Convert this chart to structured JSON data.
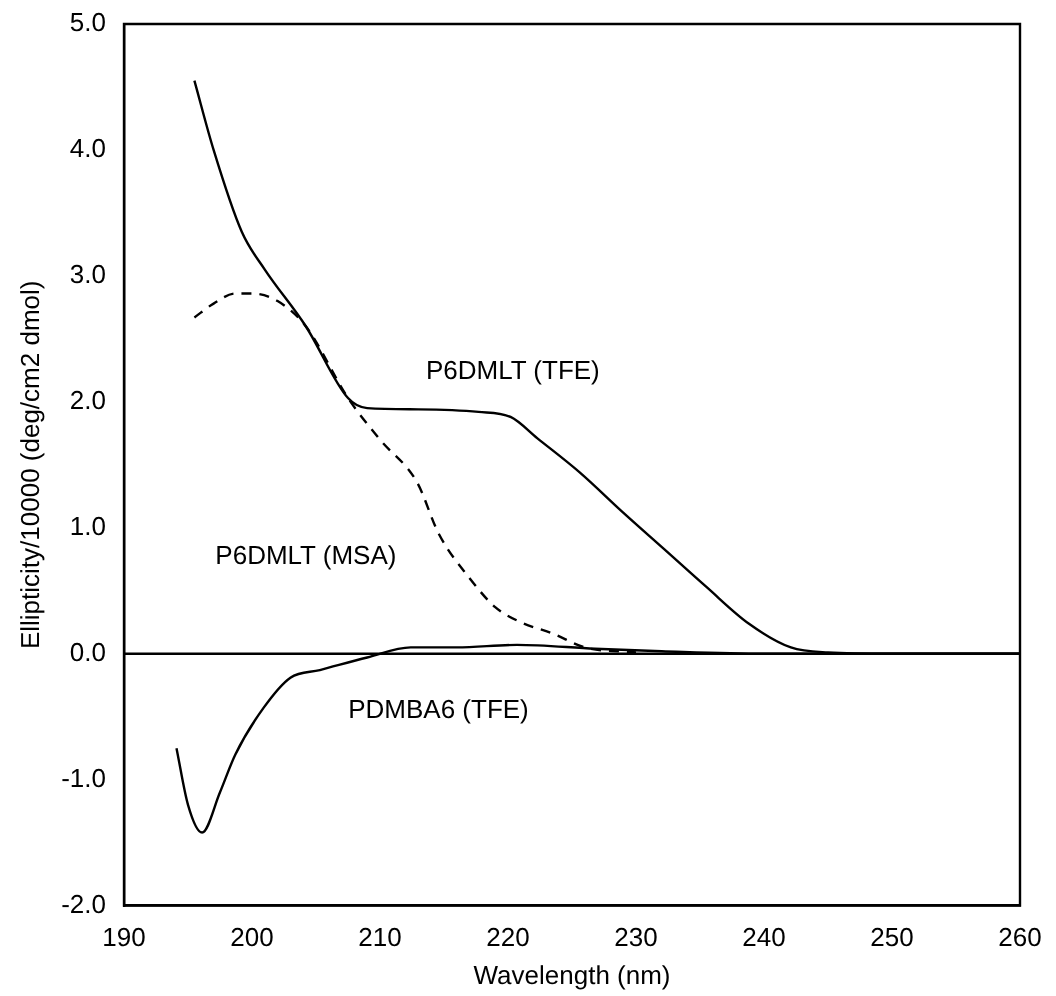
{
  "chart_data": {
    "type": "line",
    "xlabel": "Wavelength (nm)",
    "ylabel": "Ellipticity/10000 (deg/cm2 dmol)",
    "xlim": [
      190,
      260
    ],
    "xticks": [
      190,
      200,
      210,
      220,
      230,
      240,
      250,
      260
    ],
    "ylim": [
      -2,
      5
    ],
    "yticks": [
      {
        "value": -2,
        "label": "-2.0"
      },
      {
        "value": -1,
        "label": "-1.0"
      },
      {
        "value": 0,
        "label": "0.0"
      },
      {
        "value": 1,
        "label": "1.0"
      },
      {
        "value": 2,
        "label": "2.0"
      },
      {
        "value": 3,
        "label": "3.0"
      },
      {
        "value": 4,
        "label": "4.0"
      },
      {
        "value": 5,
        "label": "5.0"
      }
    ],
    "grid": false,
    "legend": false,
    "marker": "none",
    "series": [
      {
        "color": "#000000",
        "line_style": "solid",
        "x": [
          195.5,
          197,
          199.2,
          201,
          204.2,
          207.5,
          209,
          213,
          217.7,
          220.2,
          222.3,
          225.6,
          229,
          232.2,
          235.5,
          238.8,
          242.1,
          245,
          250,
          255,
          260
        ],
        "values": [
          4.55,
          4.0,
          3.35,
          3.05,
          2.6,
          2.03,
          1.95,
          1.94,
          1.92,
          1.88,
          1.71,
          1.44,
          1.12,
          0.83,
          0.53,
          0.24,
          0.05,
          0.01,
          0,
          0,
          0
        ]
      },
      {
        "color": "#000000",
        "line_style": "dashed",
        "x": [
          195.5,
          197,
          198.7,
          200,
          202,
          204.2,
          207.5,
          210,
          212.9,
          214.6,
          217,
          219,
          221,
          223.5,
          226,
          230
        ],
        "values": [
          2.67,
          2.78,
          2.86,
          2.86,
          2.8,
          2.6,
          2.03,
          1.7,
          1.36,
          0.95,
          0.6,
          0.37,
          0.25,
          0.16,
          0.05,
          0.01
        ]
      },
      {
        "color": "#000000",
        "line_style": "solid",
        "x": [
          194.1,
          195,
          196.1,
          197.5,
          198.7,
          200.9,
          203,
          205.3,
          209,
          212.4,
          216,
          220.7,
          226.8,
          232,
          240,
          250,
          260
        ],
        "values": [
          -0.75,
          -1.2,
          -1.42,
          -1.1,
          -0.8,
          -0.43,
          -0.19,
          -0.13,
          -0.03,
          0.05,
          0.05,
          0.07,
          0.04,
          0.02,
          0,
          0,
          0
        ]
      }
    ],
    "ref_lines": [
      {
        "axis": "y",
        "value": 0,
        "color": "#000000",
        "line_style": "solid"
      }
    ],
    "annotations": [
      "P6DMLT (TFE)",
      "P6DMLT (MSA)",
      "PDMBA6 (TFE)"
    ]
  }
}
